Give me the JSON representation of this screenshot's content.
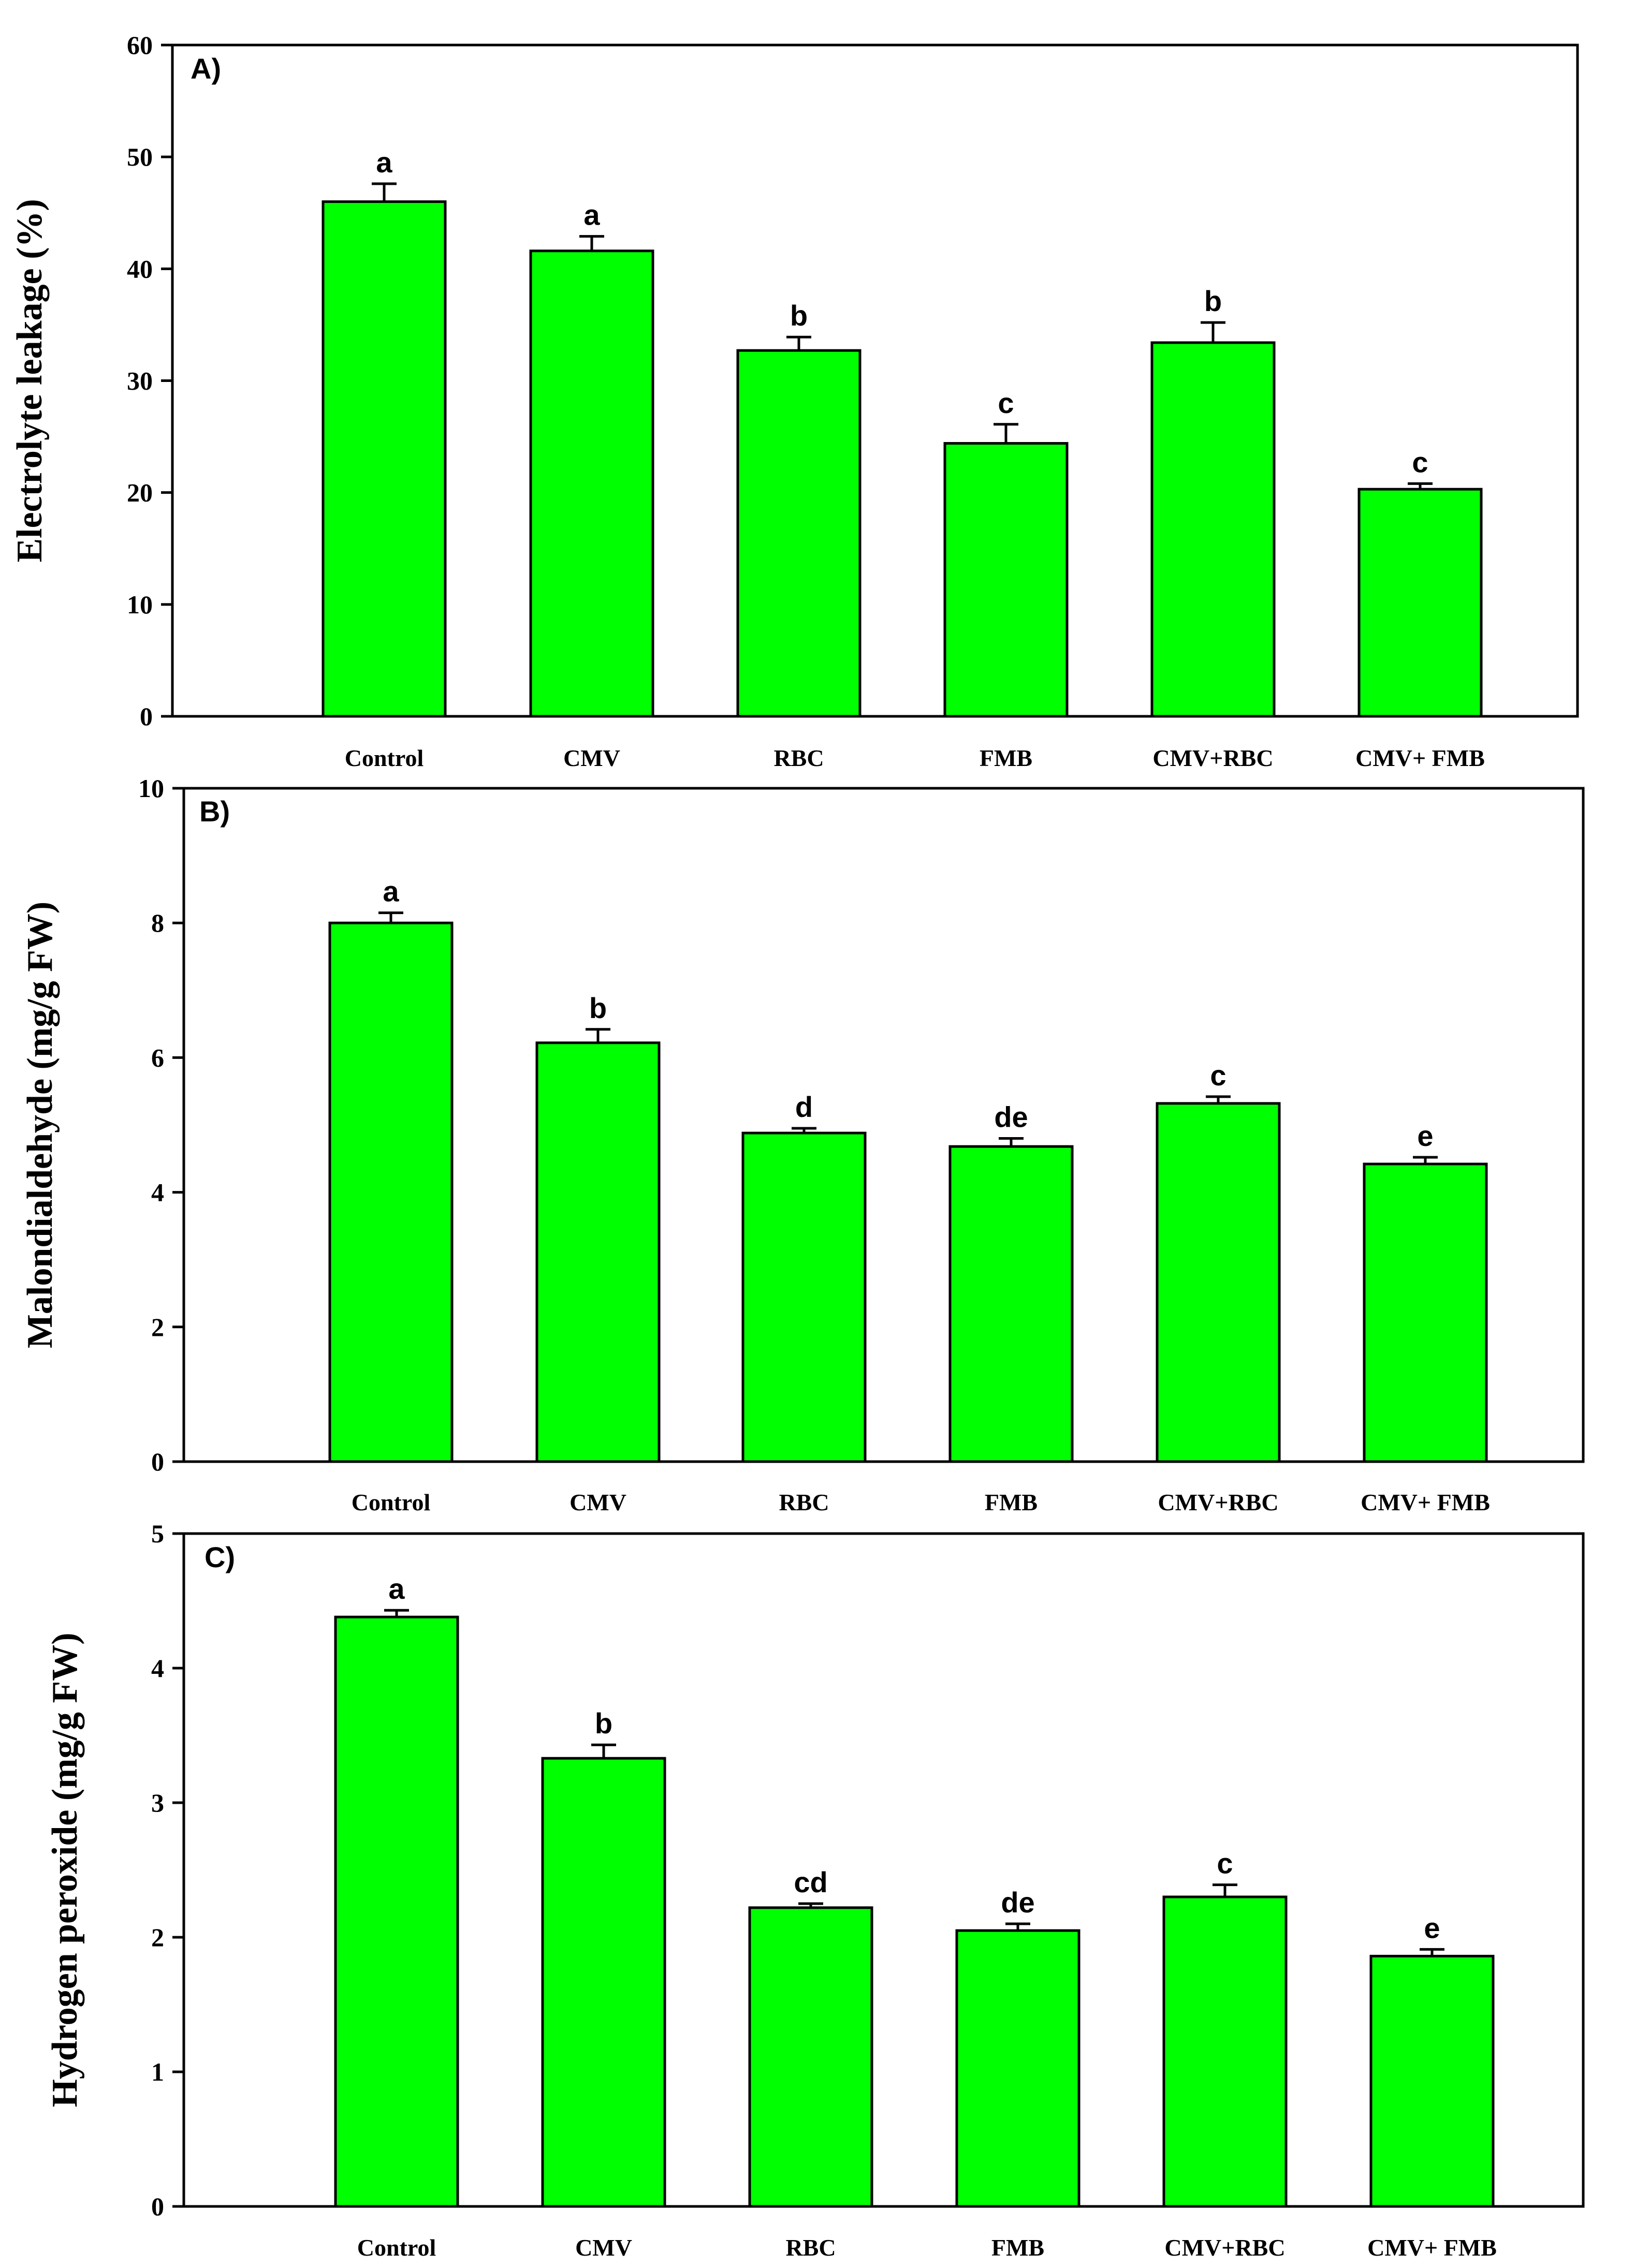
{
  "figure": {
    "bar_color": "#00ff00",
    "bar_edge_color": "#000000",
    "axis_color": "#000000"
  },
  "chart_data": [
    {
      "type": "bar",
      "panel": "A)",
      "ylabel": "Electrolyte leakage (%)",
      "xlabel": "",
      "ylim": [
        0,
        60
      ],
      "yticks": [
        0,
        10,
        20,
        30,
        40,
        50,
        60
      ],
      "categories": [
        "Control",
        "CMV",
        "RBC",
        "FMB",
        "CMV+RBC",
        "CMV+ FMB"
      ],
      "values": [
        46.0,
        41.6,
        32.7,
        24.4,
        33.4,
        20.3
      ],
      "errors": [
        1.6,
        1.3,
        1.2,
        1.7,
        1.8,
        0.5
      ],
      "significance": [
        "a",
        "a",
        "b",
        "c",
        "b",
        "c"
      ]
    },
    {
      "type": "bar",
      "panel": "B)",
      "ylabel": "Malondialdehyde (mg/g FW)",
      "xlabel": "",
      "ylim": [
        0,
        10
      ],
      "yticks": [
        0,
        2,
        4,
        6,
        8,
        10
      ],
      "categories": [
        "Control",
        "CMV",
        "RBC",
        "FMB",
        "CMV+RBC",
        "CMV+ FMB"
      ],
      "values": [
        8.0,
        6.22,
        4.88,
        4.68,
        5.32,
        4.42
      ],
      "errors": [
        0.15,
        0.2,
        0.07,
        0.12,
        0.1,
        0.1
      ],
      "significance": [
        "a",
        "b",
        "d",
        "de",
        "c",
        "e"
      ]
    },
    {
      "type": "bar",
      "panel": "C)",
      "ylabel": "Hydrogen peroxide (mg/g FW)",
      "xlabel": "",
      "ylim": [
        0,
        5
      ],
      "yticks": [
        0,
        1,
        2,
        3,
        4,
        5
      ],
      "categories": [
        "Control",
        "CMV",
        "RBC",
        "FMB",
        "CMV+RBC",
        "CMV+ FMB"
      ],
      "values": [
        4.38,
        3.33,
        2.22,
        2.05,
        2.3,
        1.86
      ],
      "errors": [
        0.05,
        0.1,
        0.03,
        0.05,
        0.09,
        0.05
      ],
      "significance": [
        "a",
        "b",
        "cd",
        "de",
        "c",
        "e"
      ]
    }
  ]
}
